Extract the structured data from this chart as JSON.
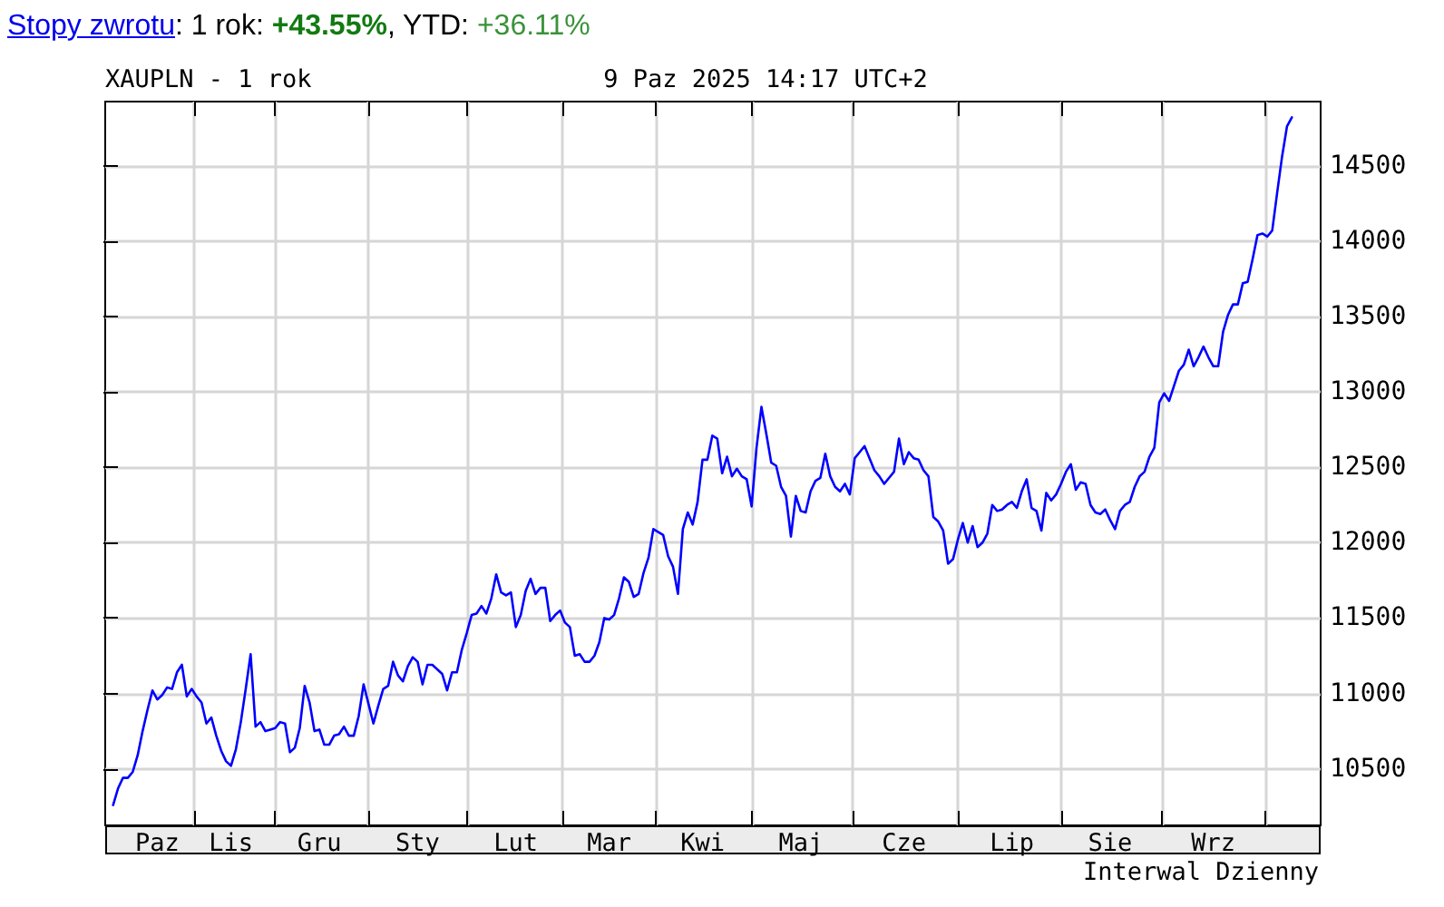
{
  "chart_data": {
    "type": "line",
    "title": "Stopy zwrotu: 1 rok: +43.55%, YTD: +36.11%",
    "subtitle": "XAUPLN - 1 rok",
    "annotations": [
      "9 Paz 2025 14:17 UTC+2",
      "Interwal Dzienny"
    ],
    "categories": [
      null,
      null,
      null,
      null,
      null,
      null,
      null,
      null,
      null,
      "Paz",
      null,
      null,
      null,
      null,
      null,
      null,
      null,
      null,
      null,
      null,
      null,
      null,
      null,
      null,
      "Lis",
      null,
      null,
      null,
      null,
      null,
      null,
      null,
      null,
      null,
      null,
      null,
      null,
      null,
      null,
      null,
      null,
      null,
      "Gru",
      null,
      null,
      null,
      null,
      null,
      null,
      null,
      null,
      null,
      null,
      null,
      null,
      null,
      null,
      null,
      null,
      null,
      null,
      null,
      "Sty",
      null,
      null,
      null,
      null,
      null,
      null,
      null,
      null,
      null,
      null,
      null,
      null,
      null,
      null,
      null,
      null,
      null,
      null,
      null,
      "Lut",
      null,
      null,
      null,
      null,
      null,
      null,
      null,
      null,
      null,
      null,
      null,
      null,
      null,
      null,
      null,
      null,
      null,
      null,
      "Mar",
      null,
      null,
      null,
      null,
      null,
      null,
      null,
      null,
      null,
      null,
      null,
      null,
      null,
      null,
      null,
      null,
      null,
      null,
      "Kwi",
      null,
      null,
      null,
      null,
      null,
      null,
      null,
      null,
      null,
      null,
      null,
      null,
      null,
      null,
      null,
      null,
      null,
      null,
      null,
      "Maj",
      null,
      null,
      null,
      null,
      null,
      null,
      null,
      null,
      null,
      null,
      null,
      null,
      null,
      null,
      null,
      null,
      null,
      null,
      null,
      null,
      "Cze",
      null,
      null,
      null,
      null,
      null,
      null,
      null,
      null,
      null,
      null,
      null,
      null,
      null,
      null,
      null,
      null,
      null,
      null,
      null,
      null,
      null,
      "Lip",
      null,
      null,
      null,
      null,
      null,
      null,
      null,
      null,
      null,
      null,
      null,
      null,
      null,
      null,
      null,
      null,
      null,
      null,
      null,
      "Sie",
      null,
      null,
      null,
      null,
      null,
      null,
      null,
      null,
      null,
      null,
      null,
      null,
      null,
      null,
      null,
      null,
      null,
      null,
      null,
      null,
      "Wrz",
      null,
      null,
      null,
      null,
      null,
      null,
      null,
      null,
      null,
      null,
      null,
      null,
      null,
      null,
      null,
      null
    ],
    "values": [
      10260,
      10370,
      10440,
      10440,
      10480,
      10590,
      10750,
      10890,
      11020,
      10960,
      10990,
      11040,
      11030,
      11140,
      11190,
      10980,
      11030,
      10980,
      10940,
      10800,
      10840,
      10720,
      10620,
      10550,
      10520,
      10630,
      10810,
      11030,
      11260,
      10780,
      10810,
      10750,
      10760,
      10770,
      10810,
      10800,
      10610,
      10640,
      10770,
      11050,
      10940,
      10750,
      10760,
      10660,
      10660,
      10720,
      10730,
      10780,
      10720,
      10720,
      10850,
      11060,
      10930,
      10800,
      10920,
      11030,
      11050,
      11210,
      11120,
      11080,
      11180,
      11240,
      11210,
      11060,
      11190,
      11190,
      11160,
      11130,
      11020,
      11140,
      11140,
      11290,
      11400,
      11520,
      11530,
      11580,
      11530,
      11630,
      11790,
      11670,
      11650,
      11670,
      11440,
      11520,
      11680,
      11760,
      11660,
      11700,
      11700,
      11480,
      11520,
      11550,
      11470,
      11440,
      11250,
      11260,
      11210,
      11210,
      11250,
      11340,
      11500,
      11490,
      11520,
      11630,
      11770,
      11740,
      11640,
      11660,
      11800,
      11900,
      12090,
      12070,
      12050,
      11910,
      11840,
      11660,
      12090,
      12200,
      12120,
      12270,
      12550,
      12550,
      12710,
      12690,
      12460,
      12570,
      12440,
      12490,
      12440,
      12420,
      12240,
      12630,
      12900,
      12720,
      12530,
      12510,
      12370,
      12310,
      12040,
      12310,
      12210,
      12200,
      12340,
      12410,
      12430,
      12590,
      12440,
      12370,
      12340,
      12390,
      12320,
      12560,
      12600,
      12640,
      12560,
      12480,
      12440,
      12390,
      12430,
      12470,
      12690,
      12520,
      12600,
      12560,
      12550,
      12480,
      12440,
      12170,
      12140,
      12080,
      11860,
      11890,
      12020,
      12130,
      12000,
      12110,
      11970,
      12000,
      12060,
      12250,
      12210,
      12220,
      12250,
      12270,
      12230,
      12340,
      12420,
      12230,
      12210,
      12080,
      12330,
      12280,
      12320,
      12390,
      12470,
      12520,
      12350,
      12400,
      12390,
      12250,
      12200,
      12190,
      12220,
      12150,
      12090,
      12210,
      12250,
      12270,
      12370,
      12440,
      12470,
      12570,
      12630,
      12930,
      12990,
      12940,
      13040,
      13140,
      13180,
      13280,
      13170,
      13230,
      13300,
      13230,
      13170,
      13170,
      13400,
      13510,
      13580,
      13580,
      13720,
      13730,
      13880,
      14040,
      14050,
      14030,
      14070,
      14320,
      14560,
      14760,
      14820
    ],
    "color": "#0000ff",
    "ylim": [
      10125,
      14925
    ],
    "yticks": [
      10500,
      11000,
      11500,
      12000,
      12500,
      13000,
      13500,
      14000,
      14500
    ],
    "grid": true,
    "line_style": "solid"
  }
}
